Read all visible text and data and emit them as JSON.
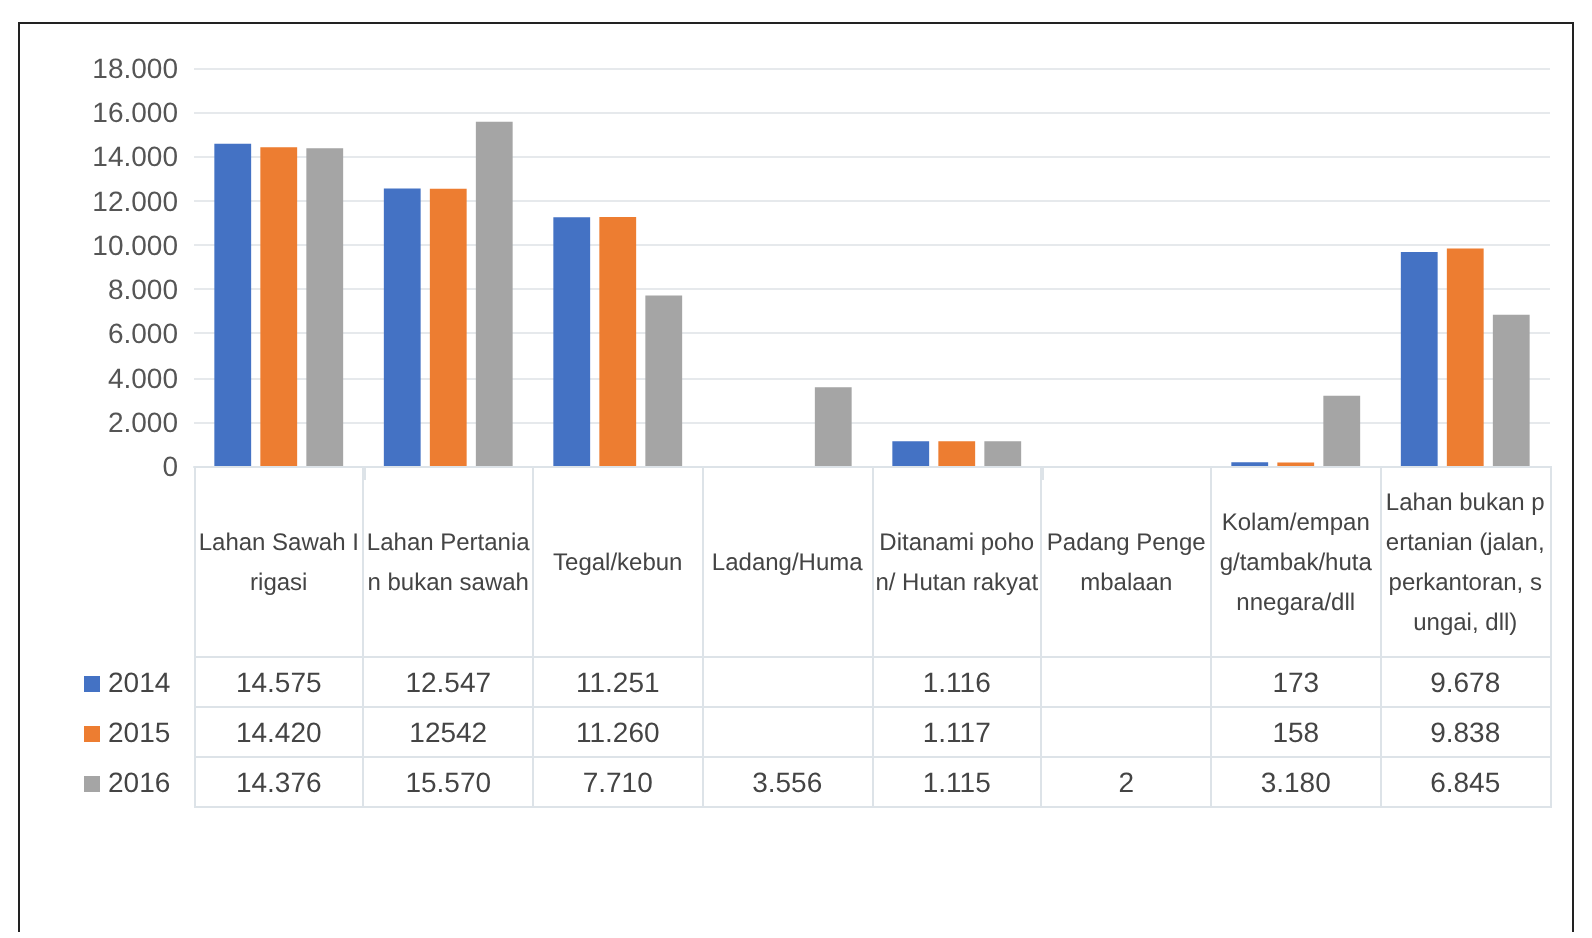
{
  "chart_data": {
    "type": "bar",
    "categories": [
      "Lahan Sawah Irigasi",
      "Lahan Pertanian bukan sawah",
      "Tegal/kebun",
      "Ladang/Huma",
      "Ditanami pohon/ Hutan rakyat",
      "Padang Pengembalaan",
      "Kolam/empang/tambak/hutannegara/dll",
      "Lahan bukan pertanian (jalan, perkantoran, sungai, dll)"
    ],
    "series": [
      {
        "name": "2014",
        "color": "#4472c4",
        "values": [
          14575,
          12547,
          11251,
          null,
          1116,
          null,
          173,
          9678
        ],
        "value_labels": [
          "14.575",
          "12.547",
          "11.251",
          null,
          "1.116",
          null,
          "173",
          "9.678"
        ]
      },
      {
        "name": "2015",
        "color": "#ed7d31",
        "values": [
          14420,
          12542,
          11260,
          null,
          1117,
          null,
          158,
          9838
        ],
        "value_labels": [
          "14.420",
          "12542",
          "11.260",
          null,
          "1.117",
          null,
          "158",
          "9.838"
        ]
      },
      {
        "name": "2016",
        "color": "#a5a5a5",
        "values": [
          14376,
          15570,
          7710,
          3556,
          1115,
          2,
          3180,
          6845
        ],
        "value_labels": [
          "14.376",
          "15.570",
          "7.710",
          "3.556",
          "1.115",
          "2",
          "3.180",
          "6.845"
        ]
      }
    ],
    "ylim": [
      0,
      18000
    ],
    "yticks": [
      {
        "value": 0,
        "label": "0"
      },
      {
        "value": 2000,
        "label": "2.000"
      },
      {
        "value": 4000,
        "label": "4.000"
      },
      {
        "value": 6000,
        "label": "6.000"
      },
      {
        "value": 8000,
        "label": "8.000"
      },
      {
        "value": 10000,
        "label": "10.000"
      },
      {
        "value": 12000,
        "label": "12.000"
      },
      {
        "value": 14000,
        "label": "14.000"
      },
      {
        "value": 16000,
        "label": "16.000"
      },
      {
        "value": 18000,
        "label": "18.000"
      }
    ],
    "grid": "y",
    "legend": "bottom left"
  }
}
